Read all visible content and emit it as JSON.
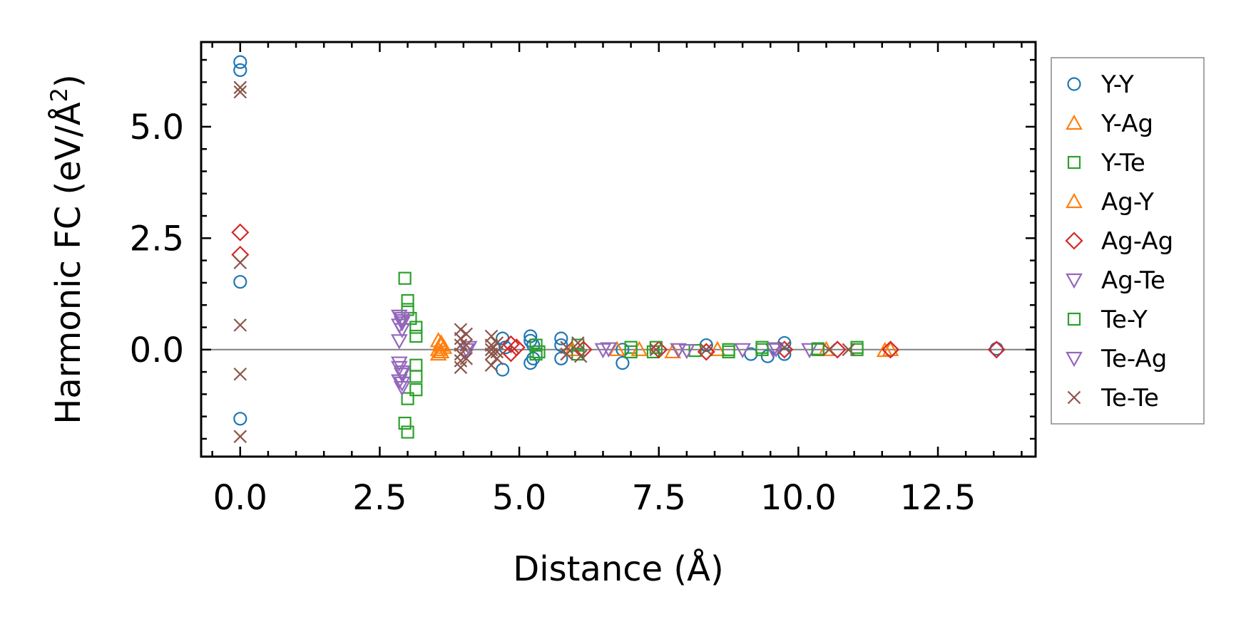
{
  "chart_data": {
    "type": "scatter",
    "title": "",
    "xlabel": "Distance (Å)",
    "ylabel": "Harmonic FC (eV/Å²)",
    "ylabel_main": "Harmonic FC (eV/Å",
    "ylabel_sup": "2",
    "ylabel_end": ")",
    "xlim": [
      -0.7,
      14.25
    ],
    "ylim": [
      -2.4,
      6.9
    ],
    "xticks": [
      0.0,
      2.5,
      5.0,
      7.5,
      10.0,
      12.5
    ],
    "xtick_labels": [
      "0.0",
      "2.5",
      "5.0",
      "7.5",
      "10.0",
      "12.5"
    ],
    "yticks": [
      0.0,
      2.5,
      5.0
    ],
    "ytick_labels": [
      "0.0",
      "2.5",
      "5.0"
    ],
    "zero_line": true,
    "legend_position": "outside right",
    "series": [
      {
        "name": "Y-Y",
        "color": "#1f77b4",
        "marker": "circle",
        "points": [
          [
            0,
            6.45
          ],
          [
            0,
            6.27
          ],
          [
            0,
            1.52
          ],
          [
            0,
            -1.55
          ],
          [
            4.7,
            0.25
          ],
          [
            4.7,
            -0.45
          ],
          [
            4.75,
            0.05
          ],
          [
            5.2,
            0.3
          ],
          [
            5.2,
            0.2
          ],
          [
            5.2,
            -0.3
          ],
          [
            5.25,
            0.1
          ],
          [
            5.25,
            -0.2
          ],
          [
            5.75,
            0.25
          ],
          [
            5.75,
            0.1
          ],
          [
            5.75,
            -0.2
          ],
          [
            6.85,
            -0.3
          ],
          [
            6.85,
            0.0
          ],
          [
            8.35,
            0.1
          ],
          [
            9.15,
            -0.1
          ],
          [
            9.45,
            -0.15
          ],
          [
            9.75,
            0.15
          ],
          [
            9.75,
            -0.1
          ],
          [
            13.55,
            0.02
          ]
        ]
      },
      {
        "name": "Y-Ag",
        "color": "#ff7f0e",
        "marker": "triangle-up",
        "points": [
          [
            3.55,
            0.2
          ],
          [
            3.55,
            0.0
          ],
          [
            3.55,
            -0.1
          ],
          [
            3.6,
            0.1
          ],
          [
            6.75,
            0.0
          ],
          [
            7.75,
            -0.05
          ],
          [
            8.55,
            0.0
          ],
          [
            11.55,
            -0.02
          ]
        ]
      },
      {
        "name": "Y-Te",
        "color": "#2ca02c",
        "marker": "square",
        "points": [
          [
            2.95,
            1.6
          ],
          [
            3.0,
            1.1
          ],
          [
            3.0,
            0.9
          ],
          [
            3.05,
            0.7
          ],
          [
            3.15,
            0.5
          ],
          [
            3.15,
            0.3
          ],
          [
            3.15,
            -0.35
          ],
          [
            3.15,
            -0.6
          ],
          [
            3.15,
            -0.9
          ],
          [
            3.0,
            -1.1
          ],
          [
            2.95,
            -1.65
          ],
          [
            3.0,
            -1.85
          ],
          [
            5.3,
            -0.1
          ],
          [
            6.05,
            0.1
          ],
          [
            7.0,
            0.05
          ],
          [
            7.4,
            -0.05
          ],
          [
            8.15,
            -0.02
          ],
          [
            8.75,
            0.0
          ],
          [
            9.35,
            0.05
          ],
          [
            10.35,
            0.02
          ],
          [
            11.05,
            0.0
          ]
        ]
      },
      {
        "name": "Ag-Y",
        "color": "#ff7f0e",
        "marker": "triangle-up",
        "points": [
          [
            3.6,
            0.15
          ],
          [
            3.65,
            0.05
          ],
          [
            3.6,
            -0.05
          ],
          [
            5.95,
            0.0
          ],
          [
            7.15,
            0.0
          ],
          [
            10.5,
            0.0
          ],
          [
            11.65,
            0.0
          ]
        ]
      },
      {
        "name": "Ag-Ag",
        "color": "#d62728",
        "marker": "diamond",
        "points": [
          [
            0,
            2.63
          ],
          [
            0,
            2.13
          ],
          [
            4.85,
            0.12
          ],
          [
            4.85,
            -0.08
          ],
          [
            4.95,
            0.05
          ],
          [
            6.15,
            0.0
          ],
          [
            7.5,
            0.0
          ],
          [
            8.35,
            -0.05
          ],
          [
            9.75,
            0.0
          ],
          [
            10.7,
            0.0
          ],
          [
            11.65,
            0.0
          ],
          [
            13.55,
            0.0
          ]
        ]
      },
      {
        "name": "Ag-Te",
        "color": "#9467bd",
        "marker": "triangle-down",
        "points": [
          [
            2.85,
            0.75
          ],
          [
            2.9,
            0.65
          ],
          [
            2.85,
            0.55
          ],
          [
            2.9,
            0.45
          ],
          [
            2.85,
            0.2
          ],
          [
            2.85,
            -0.4
          ],
          [
            2.9,
            -0.55
          ],
          [
            2.85,
            -0.7
          ],
          [
            2.9,
            -0.85
          ],
          [
            4.05,
            0.0
          ],
          [
            6.5,
            0.0
          ],
          [
            7.85,
            0.0
          ],
          [
            9.0,
            0.0
          ],
          [
            9.55,
            0.0
          ],
          [
            10.2,
            0.0
          ]
        ]
      },
      {
        "name": "Te-Y",
        "color": "#2ca02c",
        "marker": "square",
        "points": [
          [
            5.3,
            0.1
          ],
          [
            5.35,
            -0.05
          ],
          [
            6.05,
            -0.1
          ],
          [
            7.0,
            -0.05
          ],
          [
            7.45,
            0.05
          ],
          [
            8.75,
            -0.05
          ],
          [
            9.35,
            0.0
          ],
          [
            10.35,
            0.0
          ],
          [
            11.05,
            0.05
          ]
        ]
      },
      {
        "name": "Te-Ag",
        "color": "#9467bd",
        "marker": "triangle-down",
        "points": [
          [
            2.9,
            0.7
          ],
          [
            2.9,
            0.6
          ],
          [
            2.85,
            -0.3
          ],
          [
            2.9,
            -0.5
          ],
          [
            2.9,
            -0.75
          ],
          [
            4.1,
            0.05
          ],
          [
            6.6,
            0.02
          ],
          [
            8.0,
            -0.02
          ],
          [
            9.6,
            0.02
          ]
        ]
      },
      {
        "name": "Te-Te",
        "color": "#8c564b",
        "marker": "x",
        "points": [
          [
            0,
            5.88
          ],
          [
            0,
            5.78
          ],
          [
            0,
            1.95
          ],
          [
            0,
            0.55
          ],
          [
            0,
            -0.55
          ],
          [
            0,
            -1.95
          ],
          [
            3.95,
            0.45
          ],
          [
            3.95,
            0.25
          ],
          [
            3.95,
            0.1
          ],
          [
            3.95,
            -0.1
          ],
          [
            3.95,
            -0.25
          ],
          [
            3.95,
            -0.4
          ],
          [
            4.05,
            0.35
          ],
          [
            4.05,
            0.1
          ],
          [
            4.05,
            -0.2
          ],
          [
            4.5,
            0.3
          ],
          [
            4.5,
            0.1
          ],
          [
            4.5,
            0.0
          ],
          [
            4.5,
            -0.1
          ],
          [
            4.5,
            -0.35
          ],
          [
            4.6,
            0.15
          ],
          [
            4.6,
            -0.05
          ],
          [
            4.6,
            -0.2
          ],
          [
            5.85,
            0.05
          ],
          [
            5.85,
            -0.1
          ],
          [
            6.05,
            0.15
          ],
          [
            6.1,
            -0.15
          ],
          [
            7.45,
            0.0
          ],
          [
            8.35,
            0.0
          ],
          [
            9.75,
            0.05
          ],
          [
            10.55,
            0.0
          ],
          [
            10.9,
            0.0
          ]
        ]
      }
    ]
  }
}
